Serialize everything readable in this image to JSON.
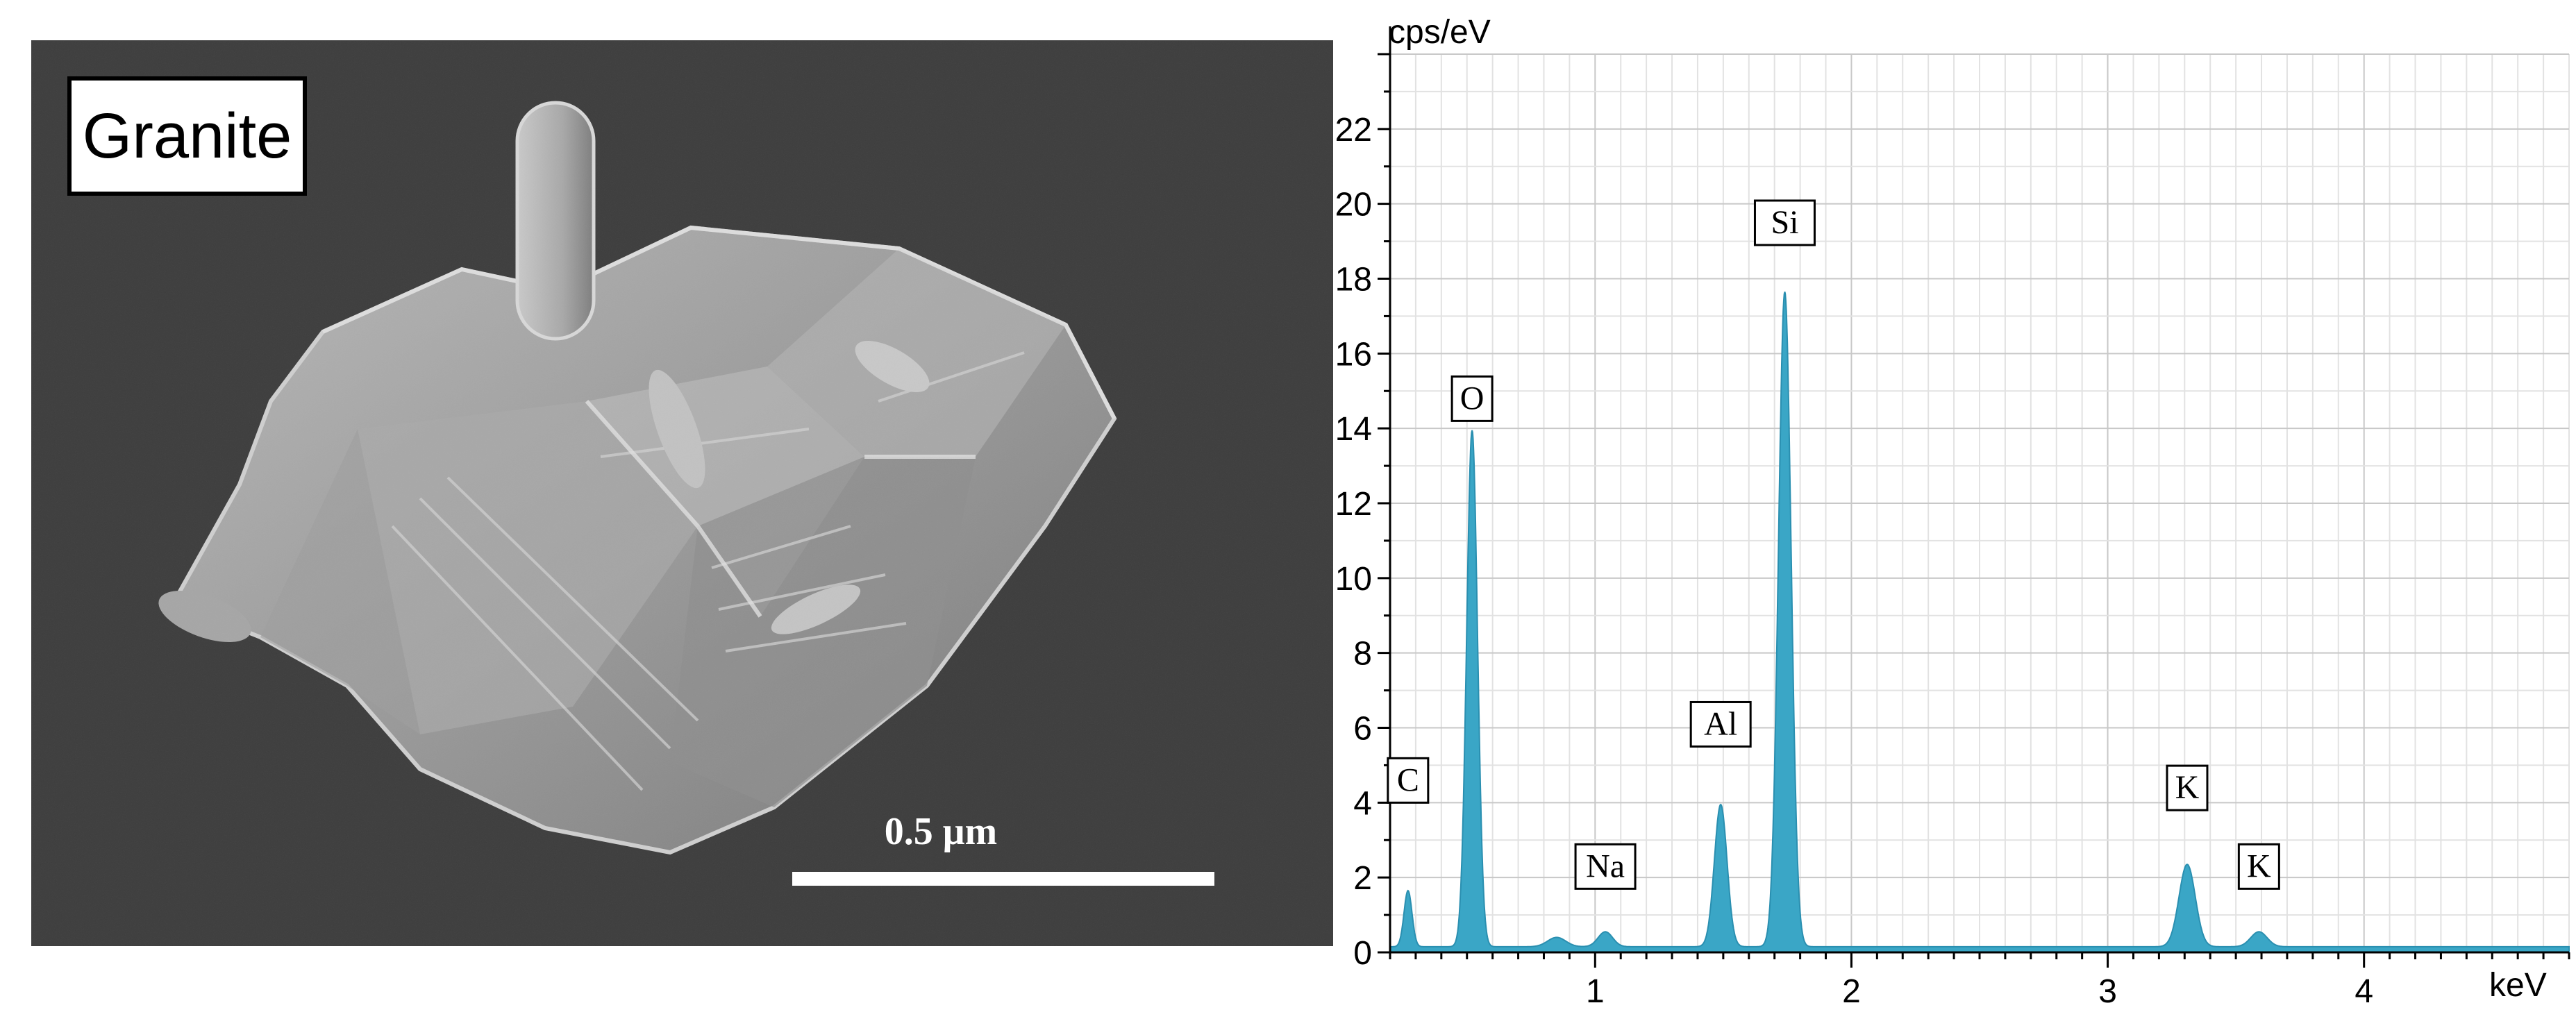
{
  "sem": {
    "sample_label": "Granite",
    "scale_bar_label": "0.5 μm",
    "background_color": "#3d3d3d"
  },
  "chart_data": {
    "type": "line",
    "title": "",
    "ylabel": "cps/eV",
    "xlabel": "keV",
    "xlim": [
      0.2,
      4.8
    ],
    "ylim": [
      0,
      24
    ],
    "x_ticks": [
      1,
      2,
      3,
      4
    ],
    "y_ticks": [
      0,
      2,
      4,
      6,
      8,
      10,
      12,
      14,
      16,
      18,
      20,
      22
    ],
    "grid": true,
    "fill_color": "#3aa6c6",
    "line_color": "#2a8fb0",
    "peaks": [
      {
        "label": "C",
        "x": 0.27,
        "y": 1.5,
        "label_y": 4.0
      },
      {
        "label": "O",
        "x": 0.52,
        "y": 13.8,
        "label_y": 14.2
      },
      {
        "label": "Na",
        "x": 1.04,
        "y": 0.4,
        "label_y": 1.7
      },
      {
        "label": "Al",
        "x": 1.49,
        "y": 3.8,
        "label_y": 5.5
      },
      {
        "label": "Si",
        "x": 1.74,
        "y": 17.5,
        "label_y": 18.9
      },
      {
        "label": "K",
        "x": 3.31,
        "y": 2.2,
        "label_y": 3.8
      },
      {
        "label": "K",
        "x": 3.59,
        "y": 0.4,
        "label_y": 1.7
      }
    ]
  }
}
